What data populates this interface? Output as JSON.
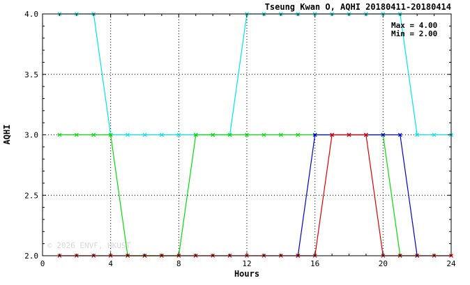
{
  "chart_data": {
    "type": "line",
    "title": "Tseung Kwan O, AQHI 20180411-20180414",
    "xlabel": "Hours",
    "ylabel": "AQHI",
    "xlim": [
      0,
      24
    ],
    "ylim": [
      2.0,
      4.0
    ],
    "x_ticks": [
      0,
      4,
      8,
      12,
      16,
      20,
      24
    ],
    "x_tick_labels": [
      "0",
      "4",
      "8",
      "12",
      "16",
      "20",
      "24"
    ],
    "y_ticks": [
      2.0,
      2.5,
      3.0,
      3.5,
      4.0
    ],
    "y_tick_labels": [
      "2.0",
      "2.5",
      "3.0",
      "3.5",
      "4.0"
    ],
    "grid": true,
    "stats": {
      "max_label": "Max = 4.00",
      "min_label": "Min = 2.00"
    },
    "watermark": "© 2026  ENVF, HKUST",
    "series": [
      {
        "color": "#00e5e5",
        "x": [
          1,
          2,
          3,
          4,
          5,
          6,
          7,
          8,
          9,
          10,
          11,
          12,
          13,
          14,
          15,
          16,
          17,
          18,
          19,
          20,
          21,
          22,
          23,
          24
        ],
        "values": [
          4,
          4,
          4,
          3,
          3,
          3,
          3,
          3,
          3,
          3,
          3,
          4,
          4,
          4,
          4,
          4,
          4,
          4,
          4,
          4,
          4,
          3,
          3,
          3
        ]
      },
      {
        "color": "#00dd00",
        "x": [
          1,
          2,
          3,
          4,
          5,
          6,
          7,
          8,
          9,
          10,
          11,
          12,
          13,
          14,
          15,
          16,
          17,
          18,
          19,
          20,
          21
        ],
        "values": [
          3,
          3,
          3,
          3,
          2,
          2,
          2,
          2,
          3,
          3,
          3,
          3,
          3,
          3,
          3,
          3,
          3,
          3,
          3,
          3,
          2
        ]
      },
      {
        "color": "#0000cc",
        "x": [
          15,
          16,
          17,
          18,
          19,
          20,
          21,
          22
        ],
        "values": [
          2,
          3,
          3,
          3,
          3,
          3,
          3,
          2
        ]
      },
      {
        "color": "#dd0000",
        "x": [
          1,
          2,
          3,
          4,
          5,
          6,
          7,
          8,
          9,
          10,
          11,
          12,
          13,
          14,
          15,
          16,
          17,
          18,
          19,
          20,
          21,
          22,
          23,
          24
        ],
        "values": [
          2,
          2,
          2,
          2,
          2,
          2,
          2,
          2,
          2,
          2,
          2,
          2,
          2,
          2,
          2,
          2,
          3,
          3,
          3,
          2,
          2,
          2,
          2,
          2
        ]
      }
    ]
  }
}
